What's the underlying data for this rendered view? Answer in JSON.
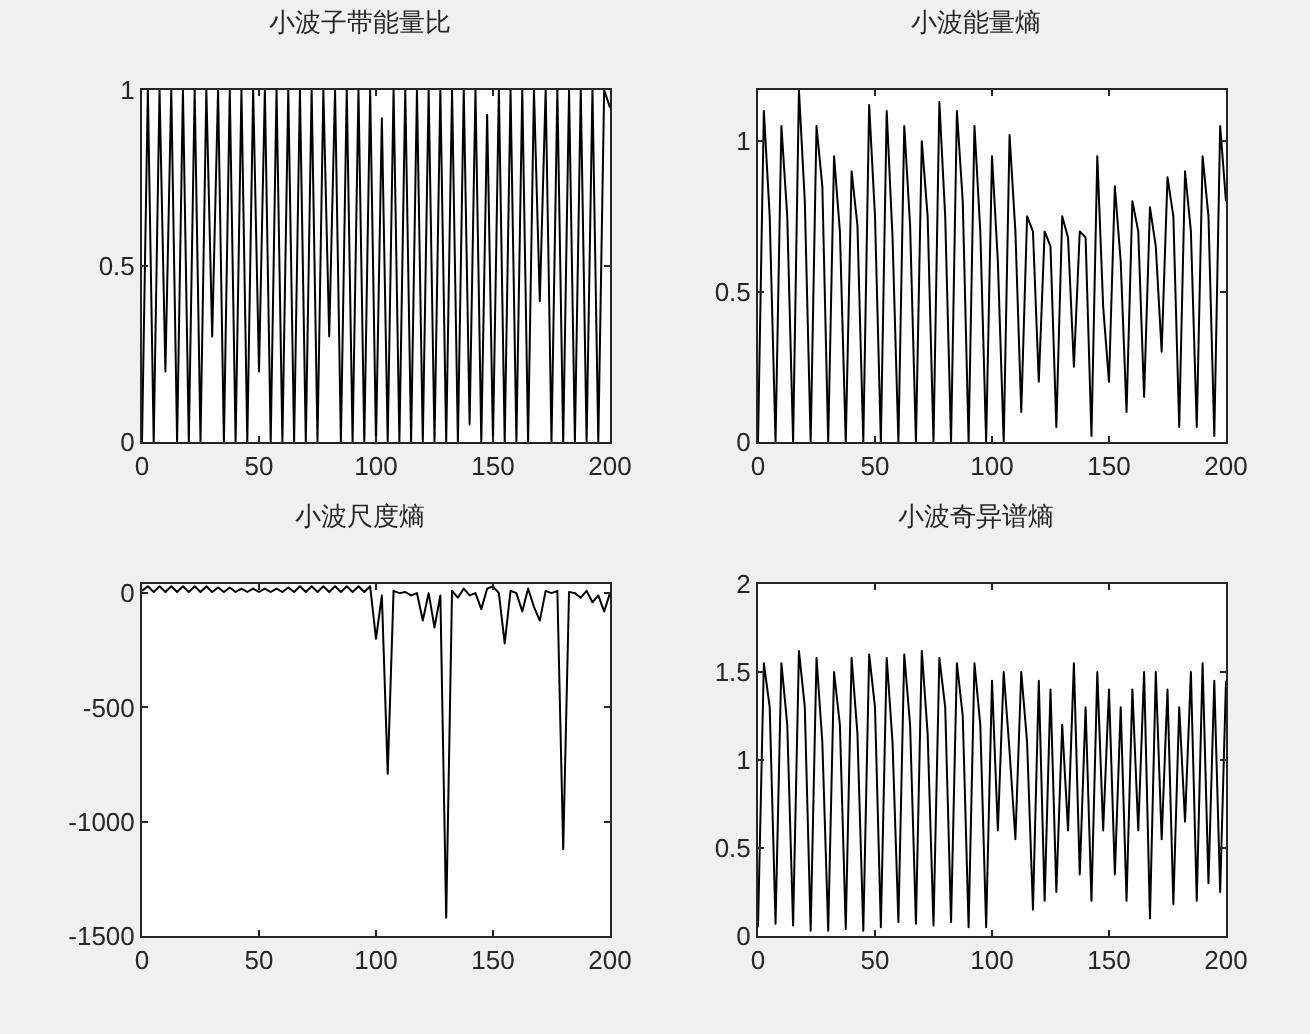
{
  "chart_data": [
    {
      "type": "line",
      "title": "小波子带能量比",
      "color": "#000000",
      "xlim": [
        0,
        200
      ],
      "xticks": [
        0,
        50,
        100,
        150,
        200
      ],
      "ylim": [
        0,
        1
      ],
      "yticks": [
        0,
        0.5,
        1
      ],
      "x": [
        0,
        2.5,
        5,
        7.5,
        10,
        12.5,
        15,
        17.5,
        20,
        22.5,
        25,
        27.5,
        30,
        32.5,
        35,
        37.5,
        40,
        42.5,
        45,
        47.5,
        50,
        52.5,
        55,
        57.5,
        60,
        62.5,
        65,
        67.5,
        70,
        72.5,
        75,
        77.5,
        80,
        82.5,
        85,
        87.5,
        90,
        92.5,
        95,
        97.5,
        100,
        102.5,
        105,
        107.5,
        110,
        112.5,
        115,
        117.5,
        120,
        122.5,
        125,
        127.5,
        130,
        132.5,
        135,
        137.5,
        140,
        142.5,
        145,
        147.5,
        150,
        152.5,
        155,
        157.5,
        160,
        162.5,
        165,
        167.5,
        170,
        172.5,
        175,
        177.5,
        180,
        182.5,
        185,
        187.5,
        190,
        192.5,
        195,
        197.5,
        200
      ],
      "values": [
        0,
        1,
        0,
        1,
        0.2,
        1,
        0,
        1,
        0,
        1,
        0,
        1,
        0.3,
        1,
        0,
        1,
        0,
        1,
        0,
        1,
        0.2,
        1,
        0,
        1,
        0,
        1,
        0,
        1,
        0,
        1,
        0,
        1,
        0.3,
        1,
        0,
        1,
        0,
        1,
        0,
        1,
        0,
        0.92,
        0,
        1,
        0,
        1,
        0,
        1,
        0,
        1,
        0,
        1,
        0,
        1,
        0,
        1,
        0.05,
        1,
        0,
        0.93,
        0,
        1,
        0,
        1,
        0,
        1,
        0,
        1,
        0.4,
        1,
        0,
        1,
        0,
        1,
        0,
        1,
        0,
        1,
        0,
        1,
        0.95
      ]
    },
    {
      "type": "line",
      "title": "小波能量熵",
      "color": "#000000",
      "xlim": [
        0,
        200
      ],
      "xticks": [
        0,
        50,
        100,
        150,
        200
      ],
      "ylim": [
        0,
        1.17
      ],
      "yticks": [
        0,
        0.5,
        1
      ],
      "x": [
        0,
        2.5,
        5,
        7.5,
        10,
        12.5,
        15,
        17.5,
        20,
        22.5,
        25,
        27.5,
        30,
        32.5,
        35,
        37.5,
        40,
        42.5,
        45,
        47.5,
        50,
        52.5,
        55,
        57.5,
        60,
        62.5,
        65,
        67.5,
        70,
        72.5,
        75,
        77.5,
        80,
        82.5,
        85,
        87.5,
        90,
        92.5,
        95,
        97.5,
        100,
        102.5,
        105,
        107.5,
        110,
        112.5,
        115,
        117.5,
        120,
        122.5,
        125,
        127.5,
        130,
        132.5,
        135,
        137.5,
        140,
        142.5,
        145,
        147.5,
        150,
        152.5,
        155,
        157.5,
        160,
        162.5,
        165,
        167.5,
        170,
        172.5,
        175,
        177.5,
        180,
        182.5,
        185,
        187.5,
        190,
        192.5,
        195,
        197.5,
        200
      ],
      "values": [
        0,
        1.1,
        0.75,
        0,
        1.05,
        0.75,
        0,
        1.17,
        0.8,
        0,
        1.05,
        0.85,
        0,
        0.95,
        0.7,
        0,
        0.9,
        0.72,
        0,
        1.12,
        0.75,
        0,
        1.1,
        0.68,
        0,
        1.05,
        0.72,
        0,
        1.0,
        0.75,
        0,
        1.13,
        0.75,
        0,
        1.1,
        0.8,
        0,
        1.05,
        0.7,
        0,
        0.95,
        0.6,
        0,
        1.02,
        0.7,
        0.1,
        0.75,
        0.7,
        0.2,
        0.7,
        0.65,
        0.05,
        0.75,
        0.68,
        0.25,
        0.7,
        0.68,
        0.02,
        0.95,
        0.45,
        0.2,
        0.85,
        0.6,
        0.1,
        0.8,
        0.7,
        0.15,
        0.78,
        0.65,
        0.3,
        0.88,
        0.75,
        0.05,
        0.9,
        0.7,
        0.05,
        0.95,
        0.75,
        0.02,
        1.05,
        0.8
      ]
    },
    {
      "type": "line",
      "title": "小波尺度熵",
      "color": "#000000",
      "xlim": [
        0,
        200
      ],
      "xticks": [
        0,
        50,
        100,
        150,
        200
      ],
      "ylim": [
        -1500,
        40
      ],
      "yticks": [
        -1500,
        -1000,
        -500,
        0
      ],
      "x": [
        0,
        2.5,
        5,
        7.5,
        10,
        12.5,
        15,
        17.5,
        20,
        22.5,
        25,
        27.5,
        30,
        32.5,
        35,
        37.5,
        40,
        42.5,
        45,
        47.5,
        50,
        52.5,
        55,
        57.5,
        60,
        62.5,
        65,
        67.5,
        70,
        72.5,
        75,
        77.5,
        80,
        82.5,
        85,
        87.5,
        90,
        92.5,
        95,
        97.5,
        100,
        102.5,
        105,
        107.5,
        110,
        112.5,
        115,
        117.5,
        120,
        122.5,
        125,
        127.5,
        130,
        132.5,
        135,
        137.5,
        140,
        142.5,
        145,
        147.5,
        150,
        152.5,
        155,
        157.5,
        160,
        162.5,
        165,
        167.5,
        170,
        172.5,
        175,
        177.5,
        180,
        182.5,
        185,
        187.5,
        190,
        192.5,
        195,
        197.5,
        200
      ],
      "values": [
        10,
        30,
        5,
        30,
        5,
        30,
        5,
        30,
        5,
        30,
        5,
        30,
        5,
        25,
        5,
        25,
        5,
        20,
        5,
        20,
        5,
        20,
        5,
        20,
        5,
        25,
        5,
        30,
        5,
        30,
        5,
        30,
        5,
        30,
        5,
        30,
        5,
        30,
        5,
        30,
        -200,
        -10,
        -790,
        10,
        0,
        5,
        -10,
        0,
        -120,
        0,
        -150,
        -10,
        -1420,
        10,
        -20,
        20,
        -10,
        0,
        -70,
        20,
        30,
        0,
        -220,
        10,
        0,
        -80,
        20,
        -60,
        -120,
        10,
        0,
        10,
        -1120,
        5,
        0,
        -20,
        10,
        -40,
        -10,
        -80,
        0
      ]
    },
    {
      "type": "line",
      "title": "小波奇异谱熵",
      "color": "#000000",
      "xlim": [
        0,
        200
      ],
      "xticks": [
        0,
        50,
        100,
        150,
        200
      ],
      "ylim": [
        0,
        2
      ],
      "yticks": [
        0,
        0.5,
        1,
        1.5,
        2
      ],
      "x": [
        0,
        2.5,
        5,
        7.5,
        10,
        12.5,
        15,
        17.5,
        20,
        22.5,
        25,
        27.5,
        30,
        32.5,
        35,
        37.5,
        40,
        42.5,
        45,
        47.5,
        50,
        52.5,
        55,
        57.5,
        60,
        62.5,
        65,
        67.5,
        70,
        72.5,
        75,
        77.5,
        80,
        82.5,
        85,
        87.5,
        90,
        92.5,
        95,
        97.5,
        100,
        102.5,
        105,
        107.5,
        110,
        112.5,
        115,
        117.5,
        120,
        122.5,
        125,
        127.5,
        130,
        132.5,
        135,
        137.5,
        140,
        142.5,
        145,
        147.5,
        150,
        152.5,
        155,
        157.5,
        160,
        162.5,
        165,
        167.5,
        170,
        172.5,
        175,
        177.5,
        180,
        182.5,
        185,
        187.5,
        190,
        192.5,
        195,
        197.5,
        200
      ],
      "values": [
        0.05,
        1.55,
        1.3,
        0.07,
        1.55,
        1.2,
        0.06,
        1.62,
        1.3,
        0.03,
        1.58,
        1.1,
        0.03,
        1.5,
        1.2,
        0.04,
        1.58,
        1.15,
        0.03,
        1.6,
        1.3,
        0.05,
        1.58,
        1.1,
        0.08,
        1.6,
        1.2,
        0.07,
        1.62,
        1.15,
        0.06,
        1.58,
        1.3,
        0.08,
        1.55,
        1.25,
        0.05,
        1.55,
        1.2,
        0.05,
        1.45,
        0.6,
        1.5,
        1.05,
        0.55,
        1.5,
        1.1,
        0.15,
        1.45,
        0.2,
        1.4,
        0.25,
        1.2,
        0.6,
        1.55,
        0.35,
        1.3,
        0.2,
        1.5,
        0.6,
        1.4,
        0.35,
        1.3,
        0.2,
        1.4,
        0.6,
        1.5,
        0.1,
        1.5,
        0.55,
        1.4,
        0.18,
        1.3,
        0.65,
        1.5,
        0.2,
        1.55,
        0.3,
        1.45,
        0.25,
        1.45
      ]
    }
  ]
}
